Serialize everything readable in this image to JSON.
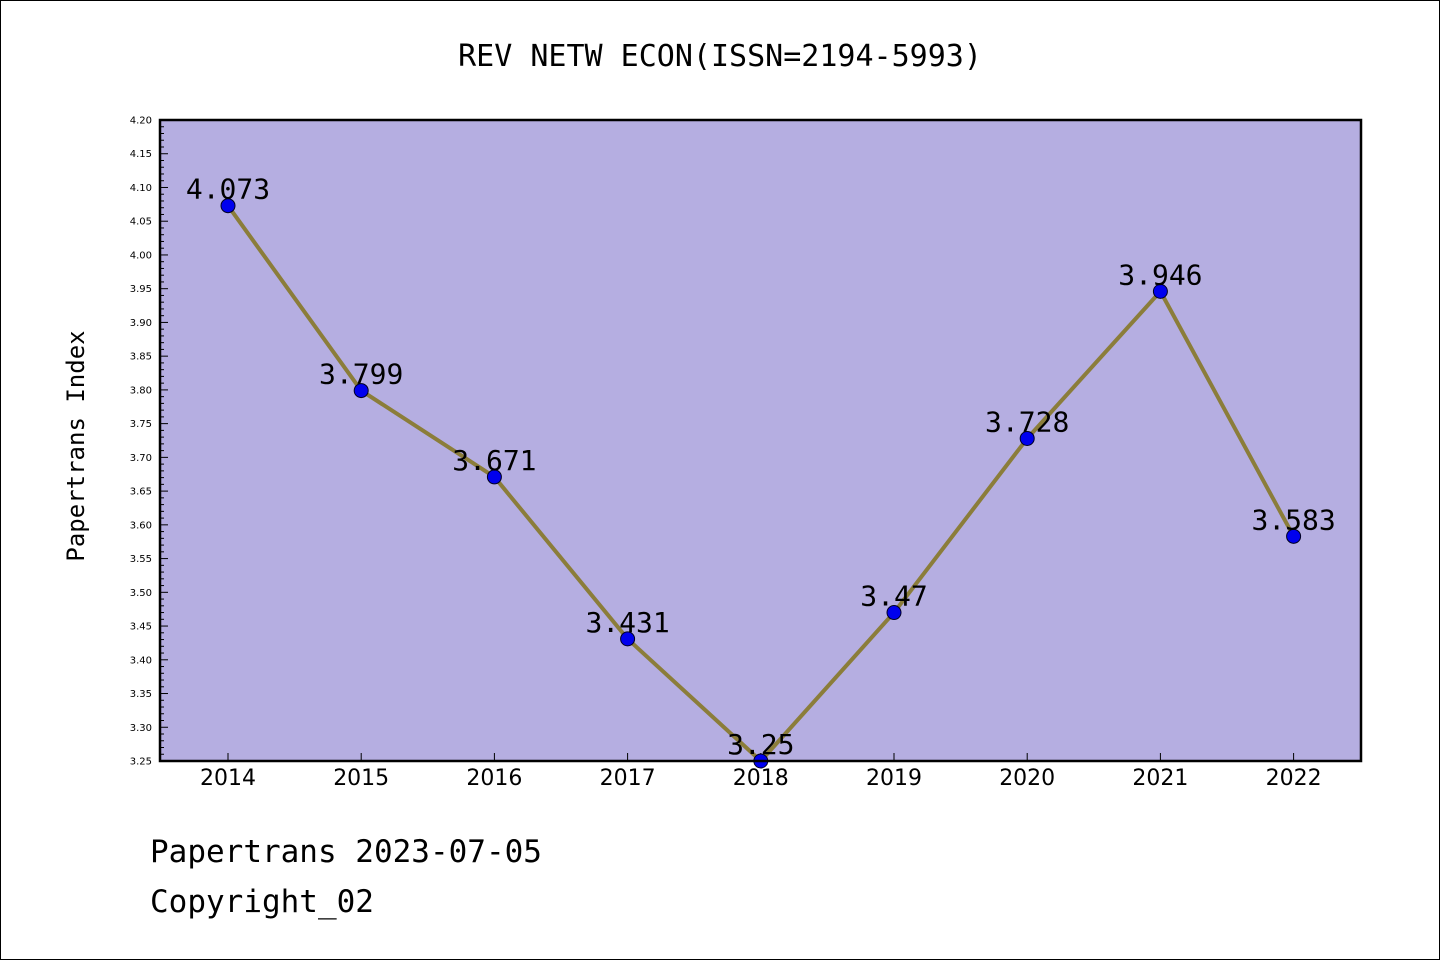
{
  "footer": {
    "line1": "Papertrans 2023-07-05",
    "line2": "Copyright_02"
  },
  "chart_data": {
    "type": "line",
    "title": "REV NETW ECON(ISSN=2194-5993)",
    "xlabel": "",
    "ylabel": "Papertrans Index",
    "categories": [
      "2014",
      "2015",
      "2016",
      "2017",
      "2018",
      "2019",
      "2020",
      "2021",
      "2022"
    ],
    "values": [
      4.073,
      3.799,
      3.671,
      3.431,
      3.25,
      3.47,
      3.728,
      3.946,
      3.583
    ],
    "data_labels": [
      "4.073",
      "3.799",
      "3.671",
      "3.431",
      "3.25",
      "3.47",
      "3.728",
      "3.946",
      "3.583"
    ],
    "ylim": [
      3.25,
      4.2
    ],
    "yticks": [
      "3.25",
      "3.30",
      "3.35",
      "3.40",
      "3.45",
      "3.50",
      "3.55",
      "3.60",
      "3.65",
      "3.70",
      "3.75",
      "3.80",
      "3.85",
      "3.90",
      "3.95",
      "4.00",
      "4.05",
      "4.10",
      "4.15",
      "4.20"
    ],
    "grid": false,
    "colors": {
      "plot_background": "#b5aee1",
      "line": "#8b7d3a",
      "marker": "#0000ee"
    }
  }
}
